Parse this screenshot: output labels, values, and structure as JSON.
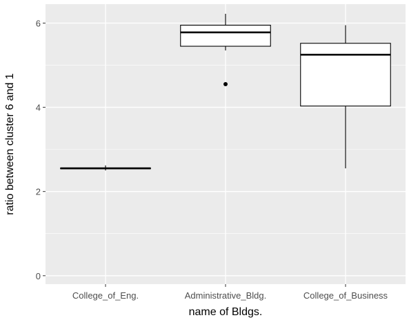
{
  "chart_data": {
    "type": "boxplot",
    "xlabel": "name of Bldgs.",
    "ylabel": "ratio between cluster 6 and 1",
    "ylim": [
      -0.2,
      6.45
    ],
    "y_ticks": [
      {
        "value": 0,
        "label": "0"
      },
      {
        "value": 2,
        "label": "2"
      },
      {
        "value": 4,
        "label": "4"
      },
      {
        "value": 6,
        "label": "6"
      }
    ],
    "grid": true,
    "categories": [
      "College_of_Eng.",
      "Administrative_Bldg.",
      "College_of_Business"
    ],
    "boxes": [
      {
        "category": "College_of_Eng.",
        "min": 2.5,
        "q1": 2.54,
        "median": 2.55,
        "q3": 2.56,
        "max": 2.62,
        "outliers": []
      },
      {
        "category": "Administrative_Bldg.",
        "min": 5.35,
        "q1": 5.45,
        "median": 5.78,
        "q3": 5.95,
        "max": 6.22,
        "outliers": [
          4.55
        ]
      },
      {
        "category": "College_of_Business",
        "min": 2.55,
        "q1": 4.03,
        "median": 5.25,
        "q3": 5.52,
        "max": 5.95,
        "outliers": []
      }
    ],
    "colors": {
      "panel_background": "#ebebeb",
      "grid": "#ffffff",
      "box_fill": "#ffffff",
      "box_stroke": "#000000"
    }
  }
}
